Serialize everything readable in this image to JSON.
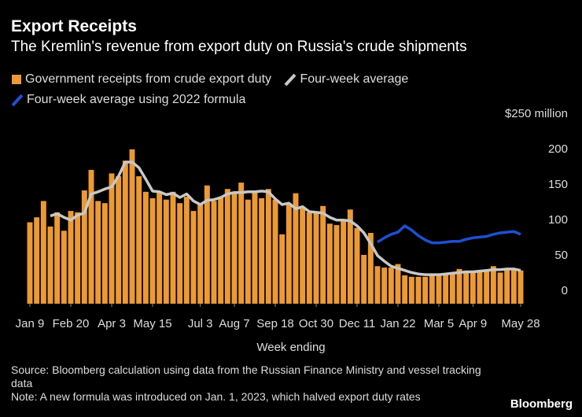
{
  "chart_data": {
    "type": "bar",
    "title": "Export Receipts",
    "subtitle": "The Kremlin's revenue from export duty on Russia's crude shipments",
    "xlabel": "Week ending",
    "source": "Source: Bloomberg calculation using data from the Russian Finance Ministry and vessel tracking data",
    "note": "Note: A new formula was introduced on Jan. 1, 2023, which halved export duty rates",
    "brand": "Bloomberg",
    "categories": [
      "Jan 9",
      null,
      null,
      null,
      null,
      null,
      "Feb 20",
      null,
      null,
      null,
      null,
      null,
      "Apr 3",
      null,
      null,
      null,
      null,
      null,
      "May 15",
      null,
      null,
      null,
      null,
      null,
      null,
      "Jul 3",
      null,
      null,
      null,
      null,
      "Aug 7",
      null,
      null,
      null,
      null,
      null,
      "Sep 18",
      null,
      null,
      null,
      null,
      null,
      "Oct 30",
      null,
      null,
      null,
      null,
      null,
      "Dec 11",
      null,
      null,
      null,
      null,
      null,
      "Jan 22",
      null,
      null,
      null,
      null,
      null,
      "Mar 5",
      null,
      null,
      null,
      null,
      "Apr 9",
      null,
      null,
      null,
      null,
      null,
      null,
      "May 28"
    ],
    "series": [
      {
        "name": "Government receipts from crude export duty",
        "type": "bar",
        "color": "#eb9a34",
        "values": [
          115,
          122,
          145,
          109,
          129,
          103,
          131,
          129,
          160,
          189,
          145,
          142,
          184,
          180,
          202,
          218,
          180,
          158,
          149,
          158,
          147,
          158,
          142,
          151,
          131,
          142,
          167,
          145,
          151,
          162,
          158,
          171,
          147,
          158,
          149,
          162,
          147,
          98,
          142,
          156,
          136,
          129,
          129,
          138,
          113,
          111,
          118,
          133,
          107,
          69,
          100,
          53,
          51,
          51,
          56,
          40,
          38,
          38,
          38,
          40,
          40,
          42,
          44,
          49,
          44,
          44,
          47,
          47,
          53,
          44,
          49,
          49,
          47
        ]
      },
      {
        "name": "Four-week average",
        "type": "line",
        "color": "#c8c8c8",
        "values": [
          null,
          null,
          null,
          124,
          127,
          122,
          118,
          125,
          128,
          155,
          158,
          162,
          165,
          180,
          200,
          200,
          192,
          176,
          159,
          158,
          154,
          156,
          150,
          155,
          145,
          140,
          146,
          147,
          150,
          155,
          157,
          157,
          158,
          158,
          159,
          158,
          148,
          140,
          142,
          134,
          137,
          130,
          129,
          128,
          122,
          118,
          118,
          117,
          110,
          100,
          85,
          68,
          60,
          53,
          50,
          47,
          44,
          42,
          41,
          41,
          41,
          42,
          43,
          44,
          45,
          45,
          46,
          47,
          48,
          48,
          49,
          49,
          47
        ]
      },
      {
        "name": "Four-week average using 2022 formula",
        "type": "line",
        "color": "#1f4fd1",
        "values": [
          null,
          null,
          null,
          null,
          null,
          null,
          null,
          null,
          null,
          null,
          null,
          null,
          null,
          null,
          null,
          null,
          null,
          null,
          null,
          null,
          null,
          null,
          null,
          null,
          null,
          null,
          null,
          null,
          null,
          null,
          null,
          null,
          null,
          null,
          null,
          null,
          null,
          null,
          null,
          null,
          null,
          null,
          null,
          null,
          null,
          null,
          null,
          null,
          null,
          null,
          null,
          87,
          93,
          98,
          101,
          110,
          104,
          96,
          90,
          86,
          86,
          87,
          88,
          88,
          91,
          93,
          94,
          95,
          98,
          100,
          101,
          102,
          98
        ]
      }
    ],
    "ylim": [
      0,
      250
    ],
    "yticks": [
      0,
      50,
      100,
      150,
      200,
      {
        "value": 250,
        "label": "$250 million"
      }
    ]
  }
}
